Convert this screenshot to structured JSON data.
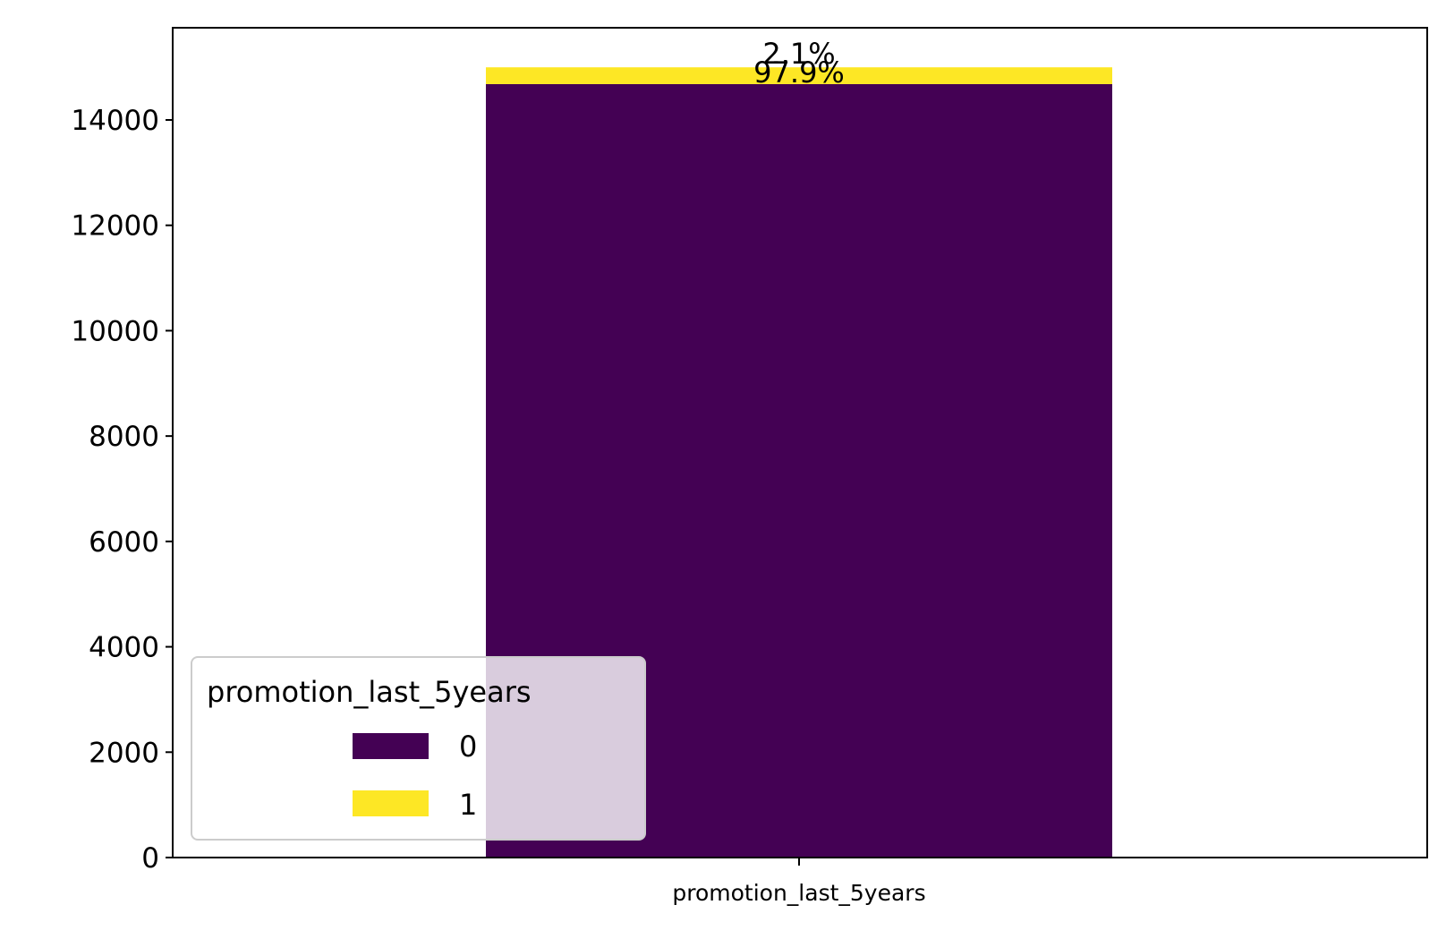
{
  "chart_data": {
    "type": "bar",
    "stacked": true,
    "title": "",
    "xlabel": "",
    "ylabel": "",
    "categories": [
      "promotion_last_5years"
    ],
    "series": [
      {
        "name": "0",
        "values": [
          14680
        ],
        "color": "#440154",
        "label": "97.9%"
      },
      {
        "name": "1",
        "values": [
          319
        ],
        "color": "#fde725",
        "label": "2.1%"
      }
    ],
    "ylim": [
      0,
      15750
    ],
    "yticks": [
      0,
      2000,
      4000,
      6000,
      8000,
      10000,
      12000,
      14000
    ],
    "legend": {
      "title": "promotion_last_5years",
      "position": "lower-left",
      "entries": [
        "0",
        "1"
      ]
    }
  }
}
